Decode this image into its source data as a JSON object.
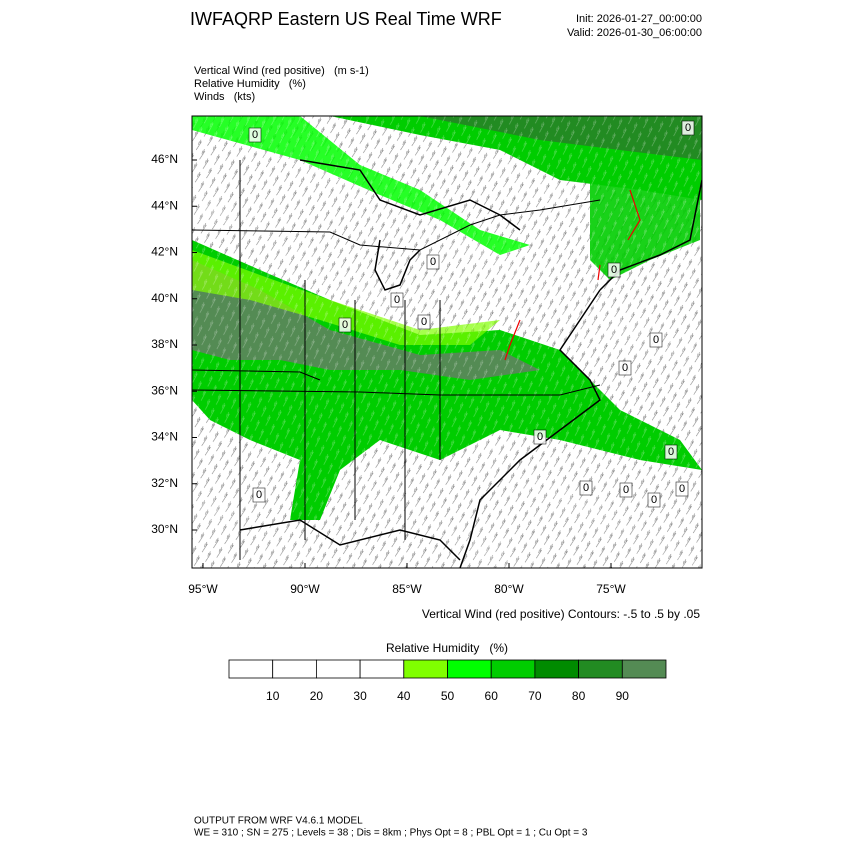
{
  "header": {
    "title": "IWFAQRP Eastern US Real Time WRF",
    "init": "Init: 2026-01-27_00:00:00",
    "valid": "Valid: 2026-01-30_06:00:00"
  },
  "fields": [
    "Vertical Wind (red positive)   (m s-1)",
    "Relative Humidity   (%)",
    "Winds   (kts)"
  ],
  "map": {
    "lat_labels": [
      "46°N",
      "44°N",
      "42°N",
      "40°N",
      "38°N",
      "36°N",
      "34°N",
      "32°N",
      "30°N"
    ],
    "lon_labels": [
      "95°W",
      "90°W",
      "85°W",
      "80°W",
      "75°W"
    ],
    "contour_labels": [
      0,
      0,
      0,
      0,
      0,
      0,
      0,
      0,
      0,
      0,
      0,
      0,
      0,
      0,
      0,
      0
    ],
    "contour_note": "Vertical Wind (red positive) Contours: -.5 to .5 by .05"
  },
  "colorbar": {
    "title": "Relative Humidity   (%)",
    "colors": [
      "#ffffff",
      "#ffffff",
      "#ffffff",
      "#ffffff",
      "#80ff00",
      "#00ff00",
      "#00cd00",
      "#008b00",
      "#228b22",
      "#548b54"
    ],
    "labels": [
      10,
      20,
      30,
      40,
      50,
      60,
      70,
      80,
      90
    ]
  },
  "footer": [
    "OUTPUT FROM WRF V4.6.1 MODEL",
    "WE = 310 ; SN = 275 ; Levels = 38 ; Dis = 8km ; Phys Opt = 8 ; PBL Opt = 1 ; Cu Opt = 3"
  ]
}
